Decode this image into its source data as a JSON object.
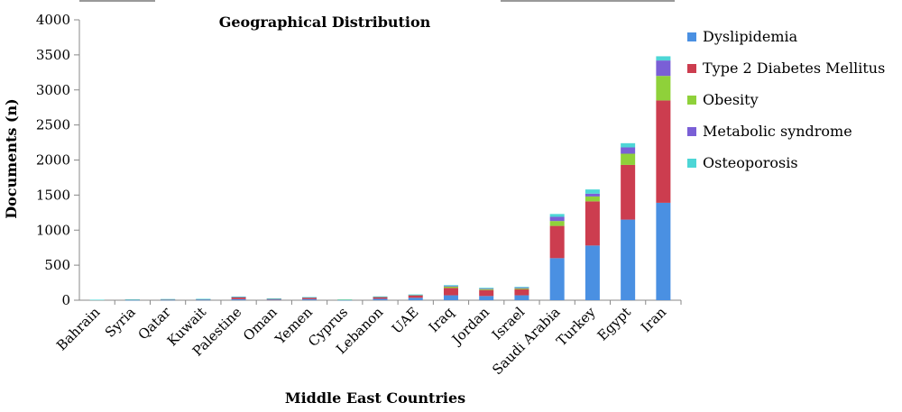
{
  "chart_data": {
    "type": "bar",
    "stacked": true,
    "title": "Geographical Distribution",
    "xlabel": "Middle East Countries",
    "ylabel": "Documents (n)",
    "ylim": [
      0,
      4000
    ],
    "yticks": [
      0,
      500,
      1000,
      1500,
      2000,
      2500,
      3000,
      3500,
      4000
    ],
    "grid": false,
    "legend_position": "right",
    "categories": [
      "Bahrain",
      "Syria",
      "Qatar",
      "Kuwait",
      "Palestine",
      "Oman",
      "Yemen",
      "Cyprus",
      "Lebanon",
      "UAE",
      "Iraq",
      "Jordan",
      "Israel",
      "Saudi Arabia",
      "Turkey",
      "Egypt",
      "Iran"
    ],
    "series": [
      {
        "name": "Dyslipidemia",
        "color": "#4a90e2",
        "values": [
          2,
          4,
          5,
          6,
          15,
          8,
          15,
          4,
          20,
          35,
          70,
          60,
          70,
          600,
          780,
          1150,
          1390
        ]
      },
      {
        "name": "Type 2 Diabetes Mellitus",
        "color": "#cc3d4f",
        "values": [
          3,
          5,
          6,
          8,
          25,
          12,
          20,
          4,
          25,
          30,
          105,
          85,
          85,
          460,
          630,
          780,
          1460
        ]
      },
      {
        "name": "Obesity",
        "color": "#8fd13a",
        "values": [
          1,
          1,
          2,
          2,
          6,
          3,
          5,
          1,
          4,
          8,
          18,
          14,
          15,
          70,
          70,
          160,
          350
        ]
      },
      {
        "name": "Metabolic syndrome",
        "color": "#7a5fd6",
        "values": [
          0,
          1,
          1,
          1,
          2,
          1,
          2,
          0,
          2,
          4,
          10,
          8,
          10,
          60,
          40,
          90,
          220
        ]
      },
      {
        "name": "Osteoporosis",
        "color": "#4dd6d6",
        "values": [
          1,
          1,
          2,
          2,
          4,
          2,
          3,
          1,
          3,
          5,
          12,
          10,
          10,
          40,
          60,
          60,
          60
        ]
      }
    ]
  }
}
